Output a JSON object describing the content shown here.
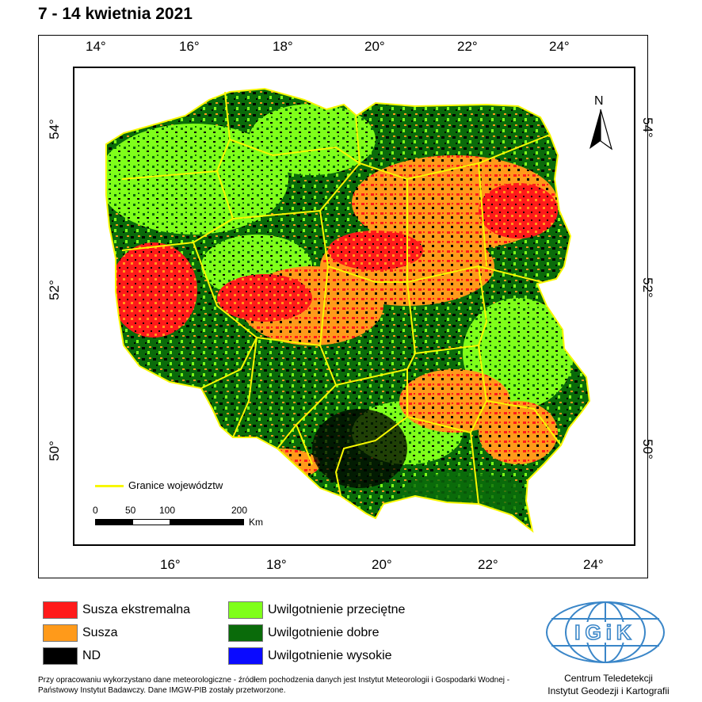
{
  "title": "7 - 14 kwietnia 2021",
  "top_lon_labels": [
    "14°",
    "16°",
    "18°",
    "20°",
    "22°",
    "24°"
  ],
  "bottom_lon_labels": [
    "16°",
    "18°",
    "20°",
    "22°",
    "24°"
  ],
  "left_lat_labels": [
    "54°",
    "52°",
    "50°"
  ],
  "right_lat_labels": [
    "54°",
    "52°",
    "50°"
  ],
  "north_label": "N",
  "map_legend": {
    "boundary_label": "Granice województw"
  },
  "scale_bar": {
    "ticks": [
      "0",
      "50",
      "100",
      "200"
    ],
    "unit": "Km"
  },
  "legend": {
    "items": [
      {
        "label": "Susza ekstremalna",
        "color": "#ff1a1a"
      },
      {
        "label": "Susza",
        "color": "#ff9a1a"
      },
      {
        "label": "ND",
        "color": "#000000"
      },
      {
        "label": "Uwilgotnienie przeciętne",
        "color": "#7fff1a"
      },
      {
        "label": "Uwilgotnienie dobre",
        "color": "#0a6b0a"
      },
      {
        "label": "Uwilgotnienie wysokie",
        "color": "#0a0aff"
      }
    ]
  },
  "colors": {
    "boundary": "#f7f700",
    "igik_blue": "#3a86c8"
  },
  "footnote": "Przy opracowaniu wykorzystano dane meteorologiczne - źródłem pochodzenia danych jest Instytut Meteorologii i Gospodarki Wodnej - Państwowy Instytut Badawczy. Dane IMGW-PIB zostały przetworzone.",
  "logo_text": "IGiK",
  "institution": {
    "line1": "Centrum Teledetekcji",
    "line2": "Instytut Geodezji i Kartografii"
  }
}
